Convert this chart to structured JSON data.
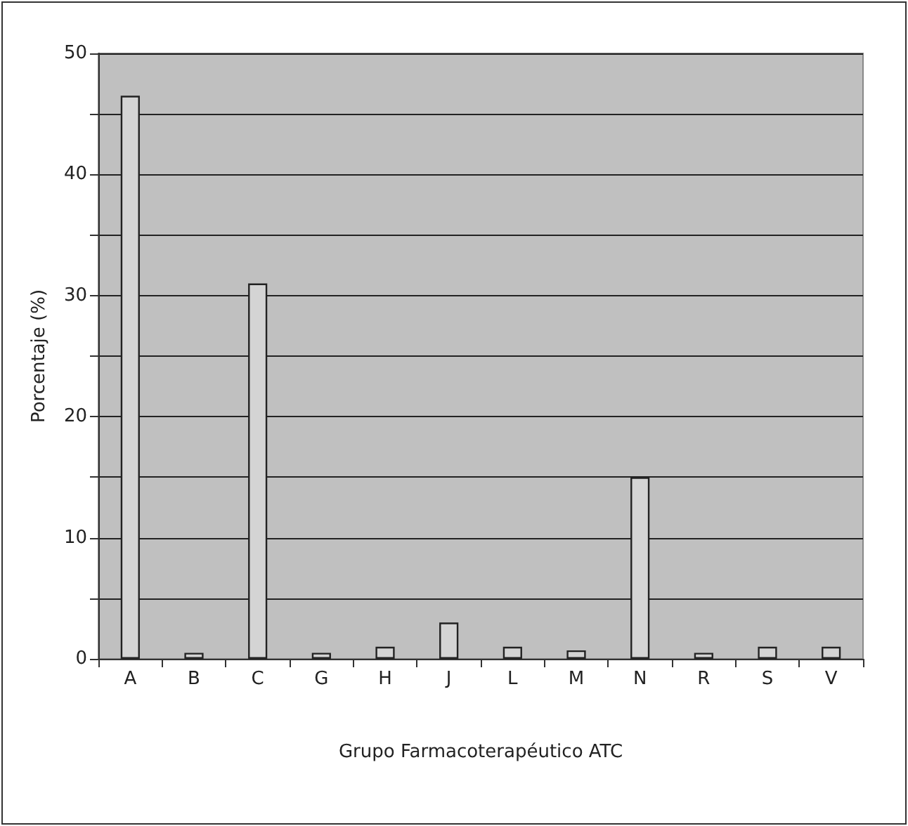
{
  "chart_data": {
    "type": "bar",
    "xlabel": "Grupo Farmacoterapéutico ATC",
    "ylabel": "Porcentaje (%)",
    "categories": [
      "A",
      "B",
      "C",
      "G",
      "H",
      "J",
      "L",
      "M",
      "N",
      "R",
      "S",
      "V"
    ],
    "values": [
      46.5,
      0.5,
      31,
      0.5,
      1,
      3,
      1,
      0.7,
      15,
      0.5,
      1,
      1
    ],
    "color": "#d4d4d4",
    "ylim": [
      0,
      50
    ],
    "yticks": [
      0,
      {
        "value": 5,
        "label": null
      },
      10,
      {
        "value": 15,
        "label": null
      },
      20,
      {
        "value": 25,
        "label": null
      },
      30,
      {
        "value": 35,
        "label": null
      },
      40,
      {
        "value": 45,
        "label": null
      },
      50
    ],
    "grid": "y"
  }
}
